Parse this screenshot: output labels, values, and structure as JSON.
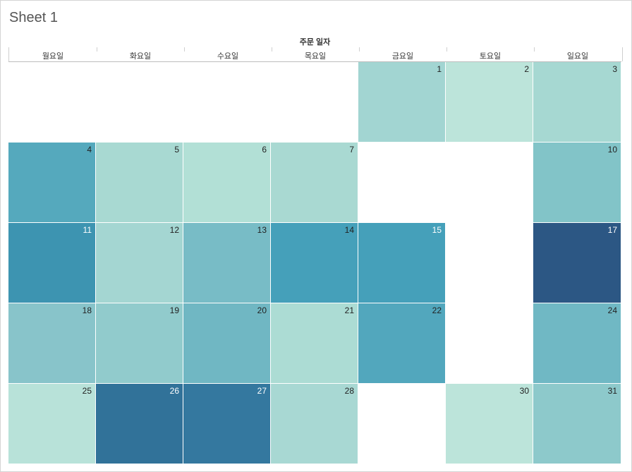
{
  "sheet": {
    "title": "Sheet 1"
  },
  "chart_data": {
    "type": "heatmap",
    "column_header": "주문 일자",
    "weekdays": [
      "월요일",
      "화요일",
      "수요일",
      "목요일",
      "금요일",
      "토요일",
      "일요일"
    ],
    "weeks": [
      [
        null,
        null,
        null,
        null,
        1,
        2,
        3
      ],
      [
        4,
        5,
        6,
        7,
        null,
        null,
        10
      ],
      [
        11,
        12,
        13,
        14,
        15,
        null,
        17
      ],
      [
        18,
        19,
        20,
        21,
        22,
        null,
        24
      ],
      [
        25,
        26,
        27,
        28,
        null,
        30,
        31
      ]
    ],
    "colors": {
      "1": "#a2d5d2",
      "2": "#bce4da",
      "3": "#a6d8d2",
      "4": "#55a9bd",
      "5": "#a8d9d2",
      "6": "#b2e0d6",
      "7": "#a9d9d2",
      "10": "#82c4c8",
      "11": "#3d94b1",
      "12": "#a4d6d2",
      "13": "#78bcc6",
      "14": "#45a0ba",
      "15": "#45a0ba",
      "17": "#2c5784",
      "18": "#88c4ca",
      "19": "#91cbcc",
      "20": "#70b7c3",
      "21": "#acdcd4",
      "22": "#52a7bd",
      "24": "#70b8c4",
      "25": "#b8e2d9",
      "26": "#317299",
      "27": "#34789f",
      "28": "#a8d8d3",
      "30": "#bce4da",
      "31": "#8dc9cb"
    },
    "light_text_days": [
      11,
      15,
      17,
      26,
      27
    ],
    "legend": "none"
  }
}
